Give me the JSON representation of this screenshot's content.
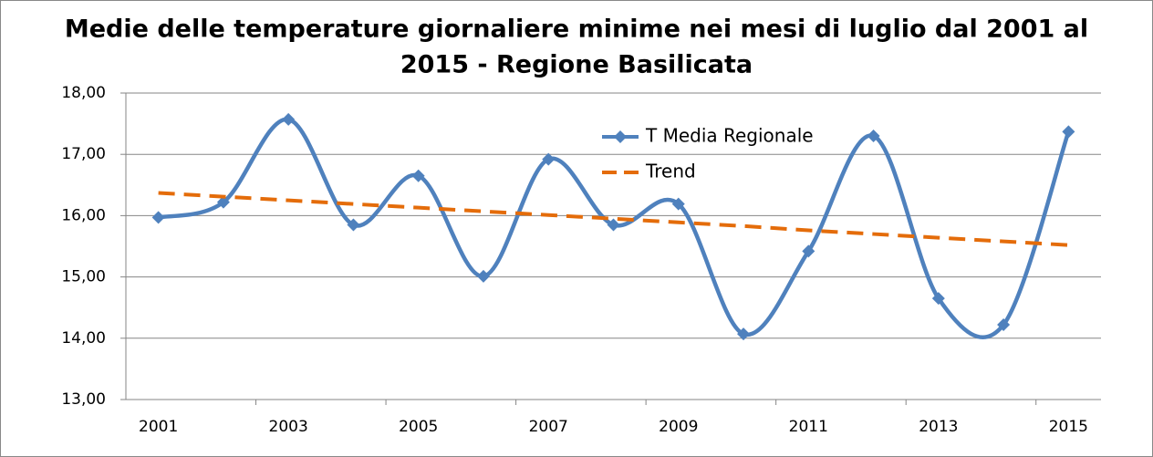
{
  "chart_data": {
    "type": "line",
    "title": [
      "Medie delle temperature giornaliere minime nei mesi di luglio dal 2001 al",
      "2015 - Regione Basilicata"
    ],
    "categories": [
      "2001",
      null,
      "2003",
      null,
      "2005",
      null,
      "2007",
      null,
      "2009",
      null,
      "2011",
      null,
      "2013",
      null,
      "2015"
    ],
    "series": [
      {
        "name": "T Media Regionale",
        "color": "#4f81bd",
        "smooth": true,
        "marker": "diamond",
        "values": [
          15.97,
          16.22,
          17.57,
          15.85,
          16.65,
          15.01,
          16.92,
          15.85,
          16.19,
          14.07,
          15.42,
          17.3,
          14.65,
          14.22,
          17.37
        ]
      },
      {
        "name": "Trend",
        "color": "#e46c0a",
        "dashed": true,
        "values": [
          16.37,
          16.31,
          16.25,
          16.19,
          16.13,
          16.07,
          16.01,
          15.95,
          15.89,
          15.83,
          15.76,
          15.7,
          15.64,
          15.58,
          15.52
        ]
      }
    ],
    "ylim": [
      13,
      18
    ],
    "yticks": [
      {
        "value": 13,
        "label": "13,00"
      },
      {
        "value": 14,
        "label": "14,00"
      },
      {
        "value": 15,
        "label": "15,00"
      },
      {
        "value": 16,
        "label": "16,00"
      },
      {
        "value": 17,
        "label": "17,00"
      },
      {
        "value": 18,
        "label": "18,00"
      }
    ],
    "grid": true,
    "legend": "top-center"
  }
}
